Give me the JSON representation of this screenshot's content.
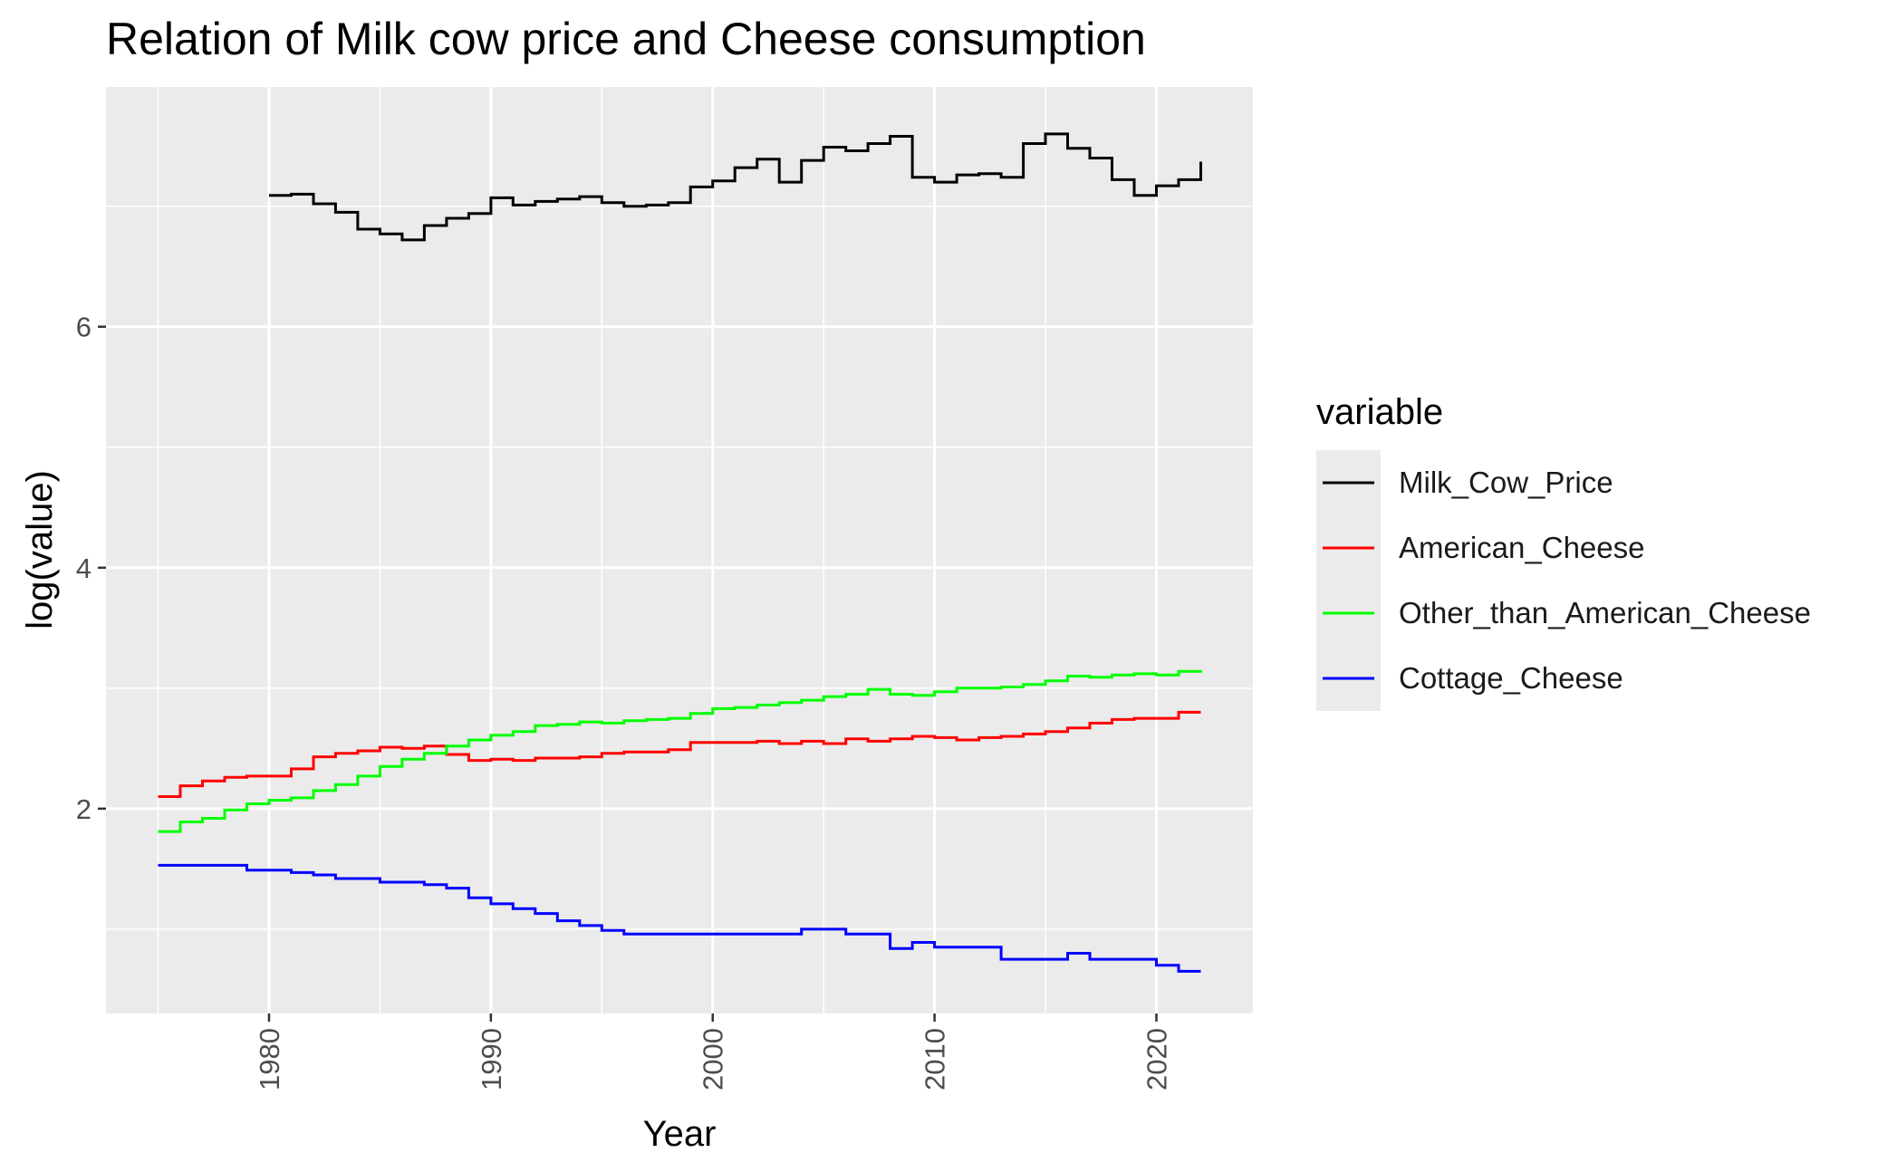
{
  "chart_data": {
    "type": "line",
    "title": "Relation of Milk cow price and Cheese consumption",
    "xlabel": "Year",
    "ylabel": "log(value)",
    "xlim": [
      1972.65,
      2024.35
    ],
    "ylim": [
      0.3,
      7.99
    ],
    "x_ticks": [
      1980,
      1990,
      2000,
      2010,
      2020
    ],
    "y_ticks": [
      2,
      4,
      6
    ],
    "y_minor": [
      1,
      3,
      5,
      7
    ],
    "grid": true,
    "legend_title": "variable",
    "legend_position": "right",
    "series": [
      {
        "name": "Milk_Cow_Price",
        "color": "#000000",
        "x": [
          1980,
          1981,
          1982,
          1983,
          1984,
          1985,
          1986,
          1987,
          1988,
          1989,
          1990,
          1991,
          1992,
          1993,
          1994,
          1995,
          1996,
          1997,
          1998,
          1999,
          2000,
          2001,
          2002,
          2003,
          2004,
          2005,
          2006,
          2007,
          2008,
          2009,
          2010,
          2011,
          2012,
          2013,
          2014,
          2015,
          2016,
          2017,
          2018,
          2019,
          2020,
          2021,
          2022
        ],
        "values": [
          7.09,
          7.1,
          7.02,
          6.95,
          6.81,
          6.77,
          6.72,
          6.84,
          6.9,
          6.94,
          7.07,
          7.01,
          7.04,
          7.06,
          7.08,
          7.03,
          7.0,
          7.01,
          7.03,
          7.16,
          7.21,
          7.32,
          7.39,
          7.2,
          7.38,
          7.49,
          7.46,
          7.52,
          7.58,
          7.24,
          7.2,
          7.26,
          7.27,
          7.24,
          7.52,
          7.6,
          7.48,
          7.4,
          7.22,
          7.09,
          7.17,
          7.22,
          7.37
        ]
      },
      {
        "name": "American_Cheese",
        "color": "#ff0000",
        "x": [
          1975,
          1976,
          1977,
          1978,
          1979,
          1980,
          1981,
          1982,
          1983,
          1984,
          1985,
          1986,
          1987,
          1988,
          1989,
          1990,
          1991,
          1992,
          1993,
          1994,
          1995,
          1996,
          1997,
          1998,
          1999,
          2000,
          2001,
          2002,
          2003,
          2004,
          2005,
          2006,
          2007,
          2008,
          2009,
          2010,
          2011,
          2012,
          2013,
          2014,
          2015,
          2016,
          2017,
          2018,
          2019,
          2020,
          2021,
          2022
        ],
        "values": [
          2.1,
          2.19,
          2.23,
          2.26,
          2.27,
          2.27,
          2.33,
          2.43,
          2.46,
          2.48,
          2.51,
          2.5,
          2.52,
          2.45,
          2.4,
          2.41,
          2.4,
          2.42,
          2.42,
          2.43,
          2.46,
          2.47,
          2.47,
          2.49,
          2.55,
          2.55,
          2.55,
          2.56,
          2.54,
          2.56,
          2.54,
          2.58,
          2.56,
          2.58,
          2.6,
          2.59,
          2.57,
          2.59,
          2.6,
          2.62,
          2.64,
          2.67,
          2.71,
          2.74,
          2.75,
          2.75,
          2.8,
          2.8
        ]
      },
      {
        "name": "Other_than_American_Cheese",
        "color": "#00ff00",
        "x": [
          1975,
          1976,
          1977,
          1978,
          1979,
          1980,
          1981,
          1982,
          1983,
          1984,
          1985,
          1986,
          1987,
          1988,
          1989,
          1990,
          1991,
          1992,
          1993,
          1994,
          1995,
          1996,
          1997,
          1998,
          1999,
          2000,
          2001,
          2002,
          2003,
          2004,
          2005,
          2006,
          2007,
          2008,
          2009,
          2010,
          2011,
          2012,
          2013,
          2014,
          2015,
          2016,
          2017,
          2018,
          2019,
          2020,
          2021,
          2022
        ],
        "values": [
          1.81,
          1.89,
          1.92,
          1.99,
          2.04,
          2.07,
          2.09,
          2.15,
          2.2,
          2.27,
          2.35,
          2.41,
          2.46,
          2.52,
          2.57,
          2.61,
          2.64,
          2.69,
          2.7,
          2.72,
          2.71,
          2.73,
          2.74,
          2.75,
          2.79,
          2.83,
          2.84,
          2.86,
          2.88,
          2.9,
          2.93,
          2.95,
          2.99,
          2.95,
          2.94,
          2.97,
          3.0,
          3.0,
          3.01,
          3.03,
          3.06,
          3.1,
          3.09,
          3.11,
          3.12,
          3.11,
          3.14,
          3.15
        ]
      },
      {
        "name": "Cottage_Cheese",
        "color": "#0000ff",
        "x": [
          1975,
          1976,
          1977,
          1978,
          1979,
          1980,
          1981,
          1982,
          1983,
          1984,
          1985,
          1986,
          1987,
          1988,
          1989,
          1990,
          1991,
          1992,
          1993,
          1994,
          1995,
          1996,
          1997,
          1998,
          1999,
          2000,
          2001,
          2002,
          2003,
          2004,
          2005,
          2006,
          2007,
          2008,
          2009,
          2010,
          2011,
          2012,
          2013,
          2014,
          2015,
          2016,
          2017,
          2018,
          2019,
          2020,
          2021,
          2022
        ],
        "values": [
          1.53,
          1.53,
          1.53,
          1.53,
          1.49,
          1.49,
          1.47,
          1.45,
          1.42,
          1.42,
          1.39,
          1.39,
          1.37,
          1.34,
          1.26,
          1.21,
          1.17,
          1.13,
          1.07,
          1.03,
          0.99,
          0.96,
          0.96,
          0.96,
          0.96,
          0.96,
          0.96,
          0.96,
          0.96,
          1.0,
          1.0,
          0.96,
          0.96,
          0.84,
          0.89,
          0.85,
          0.85,
          0.85,
          0.75,
          0.75,
          0.75,
          0.8,
          0.75,
          0.75,
          0.75,
          0.7,
          0.65,
          0.65
        ]
      }
    ]
  }
}
